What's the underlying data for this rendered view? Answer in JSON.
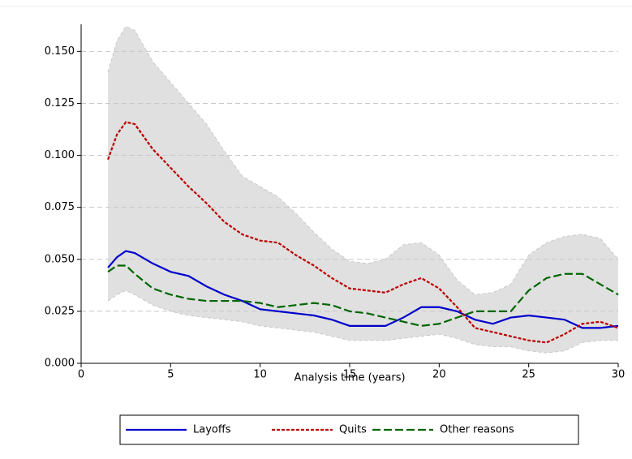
{
  "chart_data": {
    "type": "line",
    "x_label": "Analysis time (years)",
    "x": [
      1.5,
      2,
      2.5,
      3,
      4,
      5,
      6,
      7,
      8,
      9,
      10,
      11,
      12,
      13,
      14,
      15,
      16,
      17,
      18,
      19,
      20,
      21,
      22,
      23,
      24,
      25,
      26,
      27,
      28,
      29,
      30
    ],
    "series": [
      {
        "name": "Layoffs",
        "color": "#0000cc",
        "dash": "none",
        "values": [
          0.046,
          0.051,
          0.054,
          0.053,
          0.048,
          0.044,
          0.042,
          0.037,
          0.033,
          0.03,
          0.026,
          0.025,
          0.024,
          0.023,
          0.021,
          0.018,
          0.018,
          0.018,
          0.022,
          0.027,
          0.027,
          0.025,
          0.021,
          0.019,
          0.022,
          0.023,
          0.022,
          0.021,
          0.017,
          0.017,
          0.018
        ]
      },
      {
        "name": "Quits",
        "color": "#bb0000",
        "dash": "4,2",
        "values": [
          0.098,
          0.11,
          0.116,
          0.115,
          0.103,
          0.094,
          0.085,
          0.077,
          0.068,
          0.062,
          0.059,
          0.058,
          0.052,
          0.047,
          0.041,
          0.036,
          0.035,
          0.034,
          0.038,
          0.041,
          0.036,
          0.027,
          0.017,
          0.015,
          0.013,
          0.011,
          0.01,
          0.014,
          0.019,
          0.02,
          0.017
        ]
      },
      {
        "name": "Other reasons",
        "color": "#006600",
        "dash": "10,4",
        "values": [
          0.044,
          0.047,
          0.047,
          0.043,
          0.036,
          0.033,
          0.031,
          0.03,
          0.03,
          0.03,
          0.029,
          0.027,
          0.028,
          0.029,
          0.028,
          0.025,
          0.024,
          0.022,
          0.02,
          0.018,
          0.019,
          0.022,
          0.025,
          0.025,
          0.025,
          0.035,
          0.041,
          0.043,
          0.043,
          0.038,
          0.033
        ]
      }
    ],
    "band": {
      "color": "#e0e0e0",
      "upper": [
        0.14,
        0.155,
        0.162,
        0.16,
        0.145,
        0.135,
        0.125,
        0.115,
        0.102,
        0.09,
        0.085,
        0.08,
        0.072,
        0.063,
        0.055,
        0.049,
        0.048,
        0.05,
        0.057,
        0.058,
        0.052,
        0.04,
        0.033,
        0.034,
        0.038,
        0.052,
        0.058,
        0.061,
        0.062,
        0.06,
        0.05
      ],
      "lower": [
        0.03,
        0.033,
        0.035,
        0.033,
        0.028,
        0.025,
        0.023,
        0.022,
        0.021,
        0.02,
        0.018,
        0.017,
        0.016,
        0.015,
        0.013,
        0.011,
        0.011,
        0.011,
        0.012,
        0.013,
        0.014,
        0.012,
        0.009,
        0.008,
        0.008,
        0.006,
        0.005,
        0.006,
        0.01,
        0.011,
        0.011
      ]
    },
    "xlim": [
      0,
      30
    ],
    "xticks": [
      0,
      5,
      10,
      15,
      20,
      25,
      30
    ],
    "ylim": [
      0,
      0.163
    ],
    "yticks": [
      {
        "value": 0,
        "label": "0.000"
      },
      {
        "value": 0.025,
        "label": "0.025"
      },
      {
        "value": 0.05,
        "label": "0.050"
      },
      {
        "value": 0.075,
        "label": "0.075"
      },
      {
        "value": 0.1,
        "label": "0.100"
      },
      {
        "value": 0.125,
        "label": "0.125"
      },
      {
        "value": 0.15,
        "label": "0.150"
      }
    ],
    "grid": true,
    "legend": "bottom"
  }
}
